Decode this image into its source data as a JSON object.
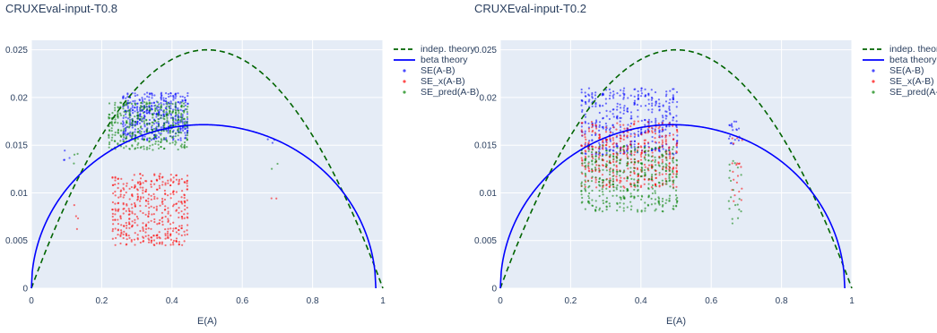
{
  "chart_data": [
    {
      "type": "scatter",
      "title": "CRUXEval-input-T0.8",
      "xlabel": "E(A)",
      "ylabel": "",
      "xlim": [
        0,
        1
      ],
      "ylim": [
        0,
        0.026
      ],
      "x_ticks": [
        "0",
        "0.2",
        "0.4",
        "0.6",
        "0.8",
        "1"
      ],
      "y_ticks": [
        "0",
        "0.005",
        "0.01",
        "0.015",
        "0.02",
        "0.025"
      ],
      "grid": true,
      "legend_position": "top-right",
      "series": [
        {
          "name": "indep. theory",
          "kind": "line",
          "style": "dashed",
          "color": "#006400",
          "formula": "0.1*x*(1-x)"
        },
        {
          "name": "beta theory",
          "kind": "line",
          "style": "solid",
          "color": "#0000ff",
          "formula": "0.035*sqrt(x*(0.98-x))"
        },
        {
          "name": "SE(A-B)",
          "kind": "points",
          "color": "#0000ff",
          "clusters": [
            {
              "x": [
                0.26,
                0.45
              ],
              "y": [
                0.0155,
                0.0205
              ],
              "n": 420
            },
            {
              "x": [
                0.09,
                0.16
              ],
              "y": [
                0.012,
                0.0148
              ],
              "n": 4
            },
            {
              "x": [
                0.67,
                0.74
              ],
              "y": [
                0.0152,
                0.0158
              ],
              "n": 3
            }
          ]
        },
        {
          "name": "SE_x(A-B)",
          "kind": "points",
          "color": "#ff0000",
          "clusters": [
            {
              "x": [
                0.23,
                0.45
              ],
              "y": [
                0.0045,
                0.012
              ],
              "n": 420
            },
            {
              "x": [
                0.12,
                0.16
              ],
              "y": [
                0.006,
                0.01
              ],
              "n": 4
            },
            {
              "x": [
                0.68,
                0.74
              ],
              "y": [
                0.009,
                0.0095
              ],
              "n": 2
            }
          ]
        },
        {
          "name": "SE_pred(A-B)",
          "kind": "points",
          "color": "#008000",
          "clusters": [
            {
              "x": [
                0.22,
                0.45
              ],
              "y": [
                0.0145,
                0.0195
              ],
              "n": 420
            },
            {
              "x": [
                0.12,
                0.16
              ],
              "y": [
                0.013,
                0.0142
              ],
              "n": 3
            },
            {
              "x": [
                0.68,
                0.74
              ],
              "y": [
                0.0125,
                0.0135
              ],
              "n": 2
            }
          ]
        }
      ]
    },
    {
      "type": "scatter",
      "title": "CRUXEval-input-T0.2",
      "xlabel": "E(A)",
      "ylabel": "",
      "xlim": [
        0,
        1
      ],
      "ylim": [
        0,
        0.026
      ],
      "x_ticks": [
        "0",
        "0.2",
        "0.4",
        "0.6",
        "0.8",
        "1"
      ],
      "y_ticks": [
        "0",
        "0.005",
        "0.01",
        "0.015",
        "0.02",
        "0.025"
      ],
      "grid": true,
      "legend_position": "top-right",
      "series": [
        {
          "name": "indep. theory",
          "kind": "line",
          "style": "dashed",
          "color": "#006400",
          "formula": "0.1*x*(1-x)"
        },
        {
          "name": "beta theory",
          "kind": "line",
          "style": "solid",
          "color": "#0000ff",
          "formula": "0.035*sqrt(x*(0.98-x))"
        },
        {
          "name": "SE(A-B)",
          "kind": "points",
          "color": "#0000ff",
          "clusters": [
            {
              "x": [
                0.23,
                0.51
              ],
              "y": [
                0.014,
                0.021
              ],
              "n": 420
            },
            {
              "x": [
                0.65,
                0.76
              ],
              "y": [
                0.015,
                0.0175
              ],
              "n": 20
            }
          ]
        },
        {
          "name": "SE_x(A-B)",
          "kind": "points",
          "color": "#ff0000",
          "clusters": [
            {
              "x": [
                0.23,
                0.51
              ],
              "y": [
                0.0105,
                0.0175
              ],
              "n": 420
            },
            {
              "x": [
                0.65,
                0.76
              ],
              "y": [
                0.0085,
                0.0165
              ],
              "n": 20
            }
          ]
        },
        {
          "name": "SE_pred(A-B)",
          "kind": "points",
          "color": "#008000",
          "clusters": [
            {
              "x": [
                0.23,
                0.51
              ],
              "y": [
                0.008,
                0.015
              ],
              "n": 420
            },
            {
              "x": [
                0.65,
                0.76
              ],
              "y": [
                0.0065,
                0.0135
              ],
              "n": 20
            }
          ]
        }
      ]
    }
  ]
}
